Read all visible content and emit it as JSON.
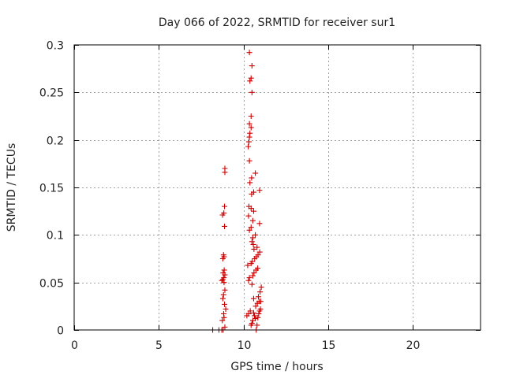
{
  "chart_data": {
    "type": "scatter",
    "title": "Day 066 of 2022, SRMTID for receiver sur1",
    "xlabel": "GPS time / hours",
    "ylabel": "SRMTID / TECUs",
    "xlim": [
      0,
      24
    ],
    "ylim": [
      0,
      0.3
    ],
    "xticks": [
      0,
      5,
      10,
      15,
      20
    ],
    "xtick_labels": [
      "0",
      "5",
      "10",
      "15",
      "20"
    ],
    "yticks": [
      0,
      0.05,
      0.1,
      0.15,
      0.2,
      0.25,
      0.3
    ],
    "ytick_labels": [
      "0",
      "0.05",
      "0.1",
      "0.15",
      "0.2",
      "0.25",
      "0.3"
    ],
    "grid": true,
    "marker": "+",
    "marker_color": "#cc0000",
    "series": [
      {
        "name": "SRMTID",
        "points": [
          [
            8.18,
            0.0
          ],
          [
            8.55,
            0.0
          ],
          [
            8.72,
            0.0
          ],
          [
            8.8,
            0.0
          ],
          [
            8.9,
            0.003
          ],
          [
            8.75,
            0.01
          ],
          [
            8.85,
            0.013
          ],
          [
            8.83,
            0.017
          ],
          [
            8.95,
            0.022
          ],
          [
            8.88,
            0.027
          ],
          [
            8.78,
            0.033
          ],
          [
            8.82,
            0.037
          ],
          [
            8.9,
            0.042
          ],
          [
            8.85,
            0.05
          ],
          [
            8.72,
            0.052
          ],
          [
            8.78,
            0.053
          ],
          [
            8.84,
            0.055
          ],
          [
            8.9,
            0.058
          ],
          [
            8.8,
            0.06
          ],
          [
            8.86,
            0.063
          ],
          [
            8.78,
            0.075
          ],
          [
            8.85,
            0.077
          ],
          [
            8.82,
            0.079
          ],
          [
            8.88,
            0.109
          ],
          [
            8.76,
            0.121
          ],
          [
            8.84,
            0.123
          ],
          [
            8.88,
            0.13
          ],
          [
            8.9,
            0.166
          ],
          [
            8.9,
            0.17
          ],
          [
            10.2,
            0.015
          ],
          [
            10.3,
            0.017
          ],
          [
            10.45,
            0.005
          ],
          [
            10.5,
            0.007
          ],
          [
            10.55,
            0.01
          ],
          [
            10.4,
            0.02
          ],
          [
            10.6,
            0.018
          ],
          [
            10.65,
            0.015
          ],
          [
            10.7,
            0.012
          ],
          [
            10.75,
            0.0
          ],
          [
            10.8,
            0.005
          ],
          [
            10.85,
            0.013
          ],
          [
            10.9,
            0.017
          ],
          [
            10.95,
            0.02
          ],
          [
            11.0,
            0.022
          ],
          [
            10.72,
            0.025
          ],
          [
            10.82,
            0.028
          ],
          [
            10.92,
            0.03
          ],
          [
            11.02,
            0.03
          ],
          [
            10.6,
            0.033
          ],
          [
            10.88,
            0.035
          ],
          [
            10.98,
            0.04
          ],
          [
            11.05,
            0.045
          ],
          [
            10.5,
            0.048
          ],
          [
            10.3,
            0.052
          ],
          [
            10.35,
            0.055
          ],
          [
            10.55,
            0.057
          ],
          [
            10.62,
            0.06
          ],
          [
            10.74,
            0.063
          ],
          [
            10.84,
            0.065
          ],
          [
            10.25,
            0.068
          ],
          [
            10.45,
            0.07
          ],
          [
            10.52,
            0.072
          ],
          [
            10.66,
            0.075
          ],
          [
            10.76,
            0.077
          ],
          [
            10.86,
            0.079
          ],
          [
            10.96,
            0.082
          ],
          [
            10.62,
            0.085
          ],
          [
            10.8,
            0.087
          ],
          [
            10.58,
            0.09
          ],
          [
            10.5,
            0.093
          ],
          [
            10.55,
            0.097
          ],
          [
            10.7,
            0.1
          ],
          [
            10.35,
            0.105
          ],
          [
            10.45,
            0.108
          ],
          [
            10.95,
            0.112
          ],
          [
            10.55,
            0.115
          ],
          [
            10.3,
            0.12
          ],
          [
            10.6,
            0.125
          ],
          [
            10.45,
            0.128
          ],
          [
            10.32,
            0.13
          ],
          [
            10.48,
            0.143
          ],
          [
            10.6,
            0.145
          ],
          [
            10.95,
            0.147
          ],
          [
            10.38,
            0.155
          ],
          [
            10.48,
            0.16
          ],
          [
            10.7,
            0.165
          ],
          [
            10.35,
            0.178
          ],
          [
            10.28,
            0.193
          ],
          [
            10.32,
            0.198
          ],
          [
            10.35,
            0.203
          ],
          [
            10.38,
            0.207
          ],
          [
            10.45,
            0.213
          ],
          [
            10.35,
            0.217
          ],
          [
            10.45,
            0.225
          ],
          [
            10.5,
            0.25
          ],
          [
            10.38,
            0.262
          ],
          [
            10.45,
            0.265
          ],
          [
            10.5,
            0.278
          ],
          [
            10.35,
            0.292
          ]
        ]
      }
    ]
  }
}
